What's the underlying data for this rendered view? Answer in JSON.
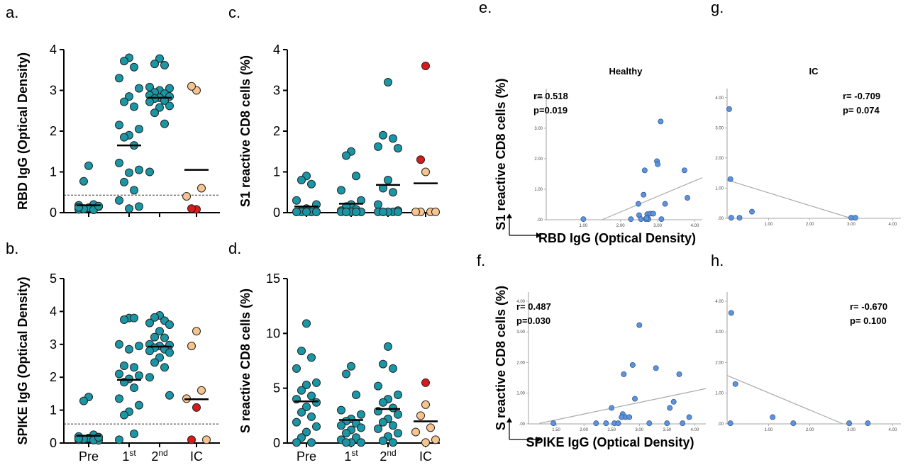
{
  "colors": {
    "teal": "#1a97a6",
    "red": "#d71a1a",
    "peach": "#f7c48d",
    "blue": "#5d93dd",
    "axis": "#000000",
    "regression": "#aaaaaa"
  },
  "chart_data": [
    {
      "panel": "a.",
      "type": "scatter",
      "ylabel": "RBD IgG (Optical Density)",
      "ylim": [
        0,
        4
      ],
      "yticks": [
        "0",
        "1",
        "2",
        "3",
        "4"
      ],
      "groups": [
        "Pre",
        "1st",
        "2nd",
        "IC"
      ],
      "threshold": 0.43,
      "means": [
        0.18,
        1.65,
        2.82,
        1.05
      ],
      "points": [
        {
          "group": 0,
          "values": [
            1.15,
            0.77,
            0.2,
            0.18,
            0.15,
            0.12,
            0.1,
            0.1,
            0.08,
            0.15,
            0.12,
            0.09,
            0.07,
            0.13,
            0.16
          ],
          "color": "teal"
        },
        {
          "group": 1,
          "values": [
            3.8,
            3.72,
            3.57,
            3.3,
            3.05,
            2.85,
            2.72,
            2.6,
            2.15,
            2.05,
            1.9,
            1.85,
            1.65,
            1.22,
            1.05,
            0.98,
            0.75,
            0.55,
            0.3,
            0.15,
            0.1
          ],
          "color": "teal"
        },
        {
          "group": 2,
          "values": [
            3.78,
            3.65,
            3.62,
            3.08,
            3.05,
            3.0,
            2.95,
            2.92,
            2.88,
            2.85,
            2.82,
            2.8,
            2.75,
            2.72,
            2.62,
            2.58,
            2.45,
            2.18,
            1.0
          ],
          "color": "teal"
        },
        {
          "group": 3,
          "values": [
            3.0,
            3.1,
            0.6,
            0.4
          ],
          "color": "peach"
        },
        {
          "group": 3,
          "values": [
            0.08,
            0.1
          ],
          "color": "red"
        }
      ]
    },
    {
      "panel": "b.",
      "type": "scatter",
      "ylabel": "SPIKE IgG (Optical  Density)",
      "ylim": [
        0,
        5
      ],
      "yticks": [
        "0",
        "1",
        "2",
        "3",
        "4",
        "5"
      ],
      "groups": [
        "Pre",
        "1st",
        "2nd",
        "IC"
      ],
      "threshold": 0.58,
      "means": [
        0.22,
        1.92,
        2.93,
        1.33
      ],
      "points": [
        {
          "group": 0,
          "values": [
            1.4,
            1.28,
            0.25,
            0.2,
            0.18,
            0.15,
            0.12,
            0.1,
            0.1,
            0.08,
            0.15,
            0.12,
            0.09,
            0.13,
            0.17
          ],
          "color": "teal"
        },
        {
          "group": 1,
          "values": [
            3.8,
            3.75,
            3.8,
            3.0,
            2.95,
            2.85,
            2.35,
            2.3,
            2.1,
            2.05,
            1.95,
            1.85,
            1.68,
            1.35,
            1.15,
            0.95,
            0.85,
            0.28,
            0.1
          ],
          "color": "teal"
        },
        {
          "group": 2,
          "values": [
            3.88,
            3.82,
            3.72,
            3.65,
            3.6,
            3.4,
            3.22,
            3.2,
            3.0,
            2.98,
            2.95,
            2.9,
            2.85,
            2.8,
            2.75,
            2.6,
            2.45,
            2.3,
            2.0,
            1.45
          ],
          "color": "teal"
        },
        {
          "group": 3,
          "values": [
            3.4,
            2.95,
            1.6,
            1.35,
            0.1
          ],
          "color": "peach"
        },
        {
          "group": 3,
          "values": [
            1.08,
            0.1
          ],
          "color": "red"
        }
      ]
    },
    {
      "panel": "c.",
      "type": "scatter",
      "ylabel": "S1 reactive CD8 cells (%)",
      "ylim": [
        0,
        4
      ],
      "yticks": [
        "0",
        "1",
        "2",
        "3",
        "4"
      ],
      "groups": [
        "Pre",
        "1st",
        "2nd",
        "IC"
      ],
      "means": [
        0.15,
        0.22,
        0.68,
        0.72
      ],
      "points": [
        {
          "group": 0,
          "values": [
            0.9,
            0.8,
            0.7,
            0.3,
            0.2,
            0.1,
            0.05,
            0.02,
            0.02,
            0.02,
            0.02,
            0.02,
            0.02,
            0.02,
            0.02,
            0.02
          ],
          "color": "teal"
        },
        {
          "group": 1,
          "values": [
            1.5,
            1.4,
            0.9,
            0.55,
            0.3,
            0.2,
            0.15,
            0.08,
            0.05,
            0.02,
            0.02,
            0.02,
            0.02,
            0.02,
            0.02,
            0.02,
            0.02,
            0.02
          ],
          "color": "teal"
        },
        {
          "group": 2,
          "values": [
            3.2,
            1.9,
            1.82,
            1.62,
            1.58,
            0.8,
            0.6,
            0.5,
            0.2,
            0.05,
            0.02,
            0.02,
            0.02,
            0.02,
            0.02,
            0.02,
            0.02
          ],
          "color": "teal"
        },
        {
          "group": 3,
          "values": [
            1.0,
            0.02,
            0.02,
            0.02,
            0.02
          ],
          "color": "peach"
        },
        {
          "group": 3,
          "values": [
            3.6,
            1.3
          ],
          "color": "red"
        }
      ]
    },
    {
      "panel": "d.",
      "type": "scatter",
      "ylabel": "S reactive CD8 cells (%)",
      "ylim": [
        0,
        15
      ],
      "yticks": [
        "0",
        "5",
        "10",
        "15"
      ],
      "groups": [
        "Pre",
        "1st",
        "2nd",
        "IC"
      ],
      "means": [
        3.8,
        2.1,
        3.1,
        1.98
      ],
      "points": [
        {
          "group": 0,
          "values": [
            10.9,
            8.4,
            7.8,
            6.8,
            5.5,
            5.3,
            4.8,
            4.3,
            4.0,
            3.7,
            3.3,
            2.8,
            2.4,
            1.9,
            1.5,
            1.0,
            0.5,
            0.05,
            0.05
          ],
          "color": "teal"
        },
        {
          "group": 1,
          "values": [
            7.0,
            6.3,
            4.4,
            3.0,
            2.6,
            2.2,
            2.0,
            1.8,
            1.6,
            1.4,
            1.2,
            0.9,
            0.5,
            0.3,
            0.05,
            0.05,
            0.05
          ],
          "color": "teal"
        },
        {
          "group": 2,
          "values": [
            8.8,
            7.2,
            6.8,
            5.2,
            4.4,
            4.0,
            3.7,
            3.2,
            2.9,
            2.6,
            2.2,
            1.9,
            1.6,
            1.3,
            0.9,
            0.6,
            0.2,
            0.05
          ],
          "color": "teal"
        },
        {
          "group": 3,
          "values": [
            3.5,
            2.5,
            1.4,
            1.0,
            0.3,
            0.05
          ],
          "color": "peach"
        },
        {
          "group": 3,
          "values": [
            5.5
          ],
          "color": "red"
        }
      ]
    },
    {
      "panel": "e.",
      "type": "scatter",
      "title": "Healthy",
      "xlabel": "RBD IgG (Optical Density)",
      "ylabel": "S1 reactive CD8 cells (%)",
      "xlim": [
        0,
        4.2
      ],
      "ylim": [
        0,
        4.3
      ],
      "xticks": [
        "1.00",
        "2.00",
        "3.00",
        "4.00"
      ],
      "yticks": [
        "4.00",
        "3.00",
        "2.00",
        "1.00",
        ".00"
      ],
      "r": "r= 0.518",
      "p": "p=0.019",
      "fit": [
        [
          1.5,
          0.0
        ],
        [
          4.2,
          1.38
        ]
      ],
      "x": [
        1.0,
        2.28,
        2.48,
        2.5,
        2.55,
        2.62,
        2.65,
        2.68,
        2.72,
        2.75,
        2.8,
        2.88,
        2.98,
        3.0,
        3.08,
        3.2,
        3.72,
        3.8,
        2.7,
        3.1
      ],
      "y": [
        0.02,
        0.02,
        0.52,
        0.15,
        0.02,
        0.82,
        1.62,
        0.02,
        0.18,
        0.02,
        0.2,
        0.2,
        1.92,
        1.82,
        3.22,
        0.52,
        1.62,
        0.72,
        0.05,
        0.02
      ]
    },
    {
      "panel": "g.",
      "type": "scatter",
      "title": "IC",
      "xlim": [
        0,
        4.2
      ],
      "ylim": [
        0,
        4.3
      ],
      "xticks": [
        "1.00",
        "2.00",
        "3.00",
        "4.00"
      ],
      "yticks": [
        "4.00",
        "3.00",
        "2.00",
        "1.00",
        ".00"
      ],
      "r": "r= -0.709",
      "p": "p=  0.074",
      "fit": [
        [
          0.0,
          1.27
        ],
        [
          3.0,
          0.0
        ]
      ],
      "x": [
        0.05,
        0.08,
        0.1,
        0.3,
        0.6,
        3.0,
        3.1
      ],
      "y": [
        3.62,
        1.3,
        0.02,
        0.02,
        0.22,
        0.02,
        0.02
      ]
    },
    {
      "panel": "f.",
      "type": "scatter",
      "xlabel": "SPIKE IgG (Optical Density)",
      "ylabel": "S reactive CD8 cells (%)",
      "xlim": [
        1.0,
        4.2
      ],
      "ylim": [
        0,
        4.3
      ],
      "xticks": [
        "1.50",
        "2.00",
        "2.50",
        "3.00",
        "3.50",
        "4.00"
      ],
      "yticks": [
        "4.00",
        "3.00",
        "2.00",
        "1.00",
        ".00"
      ],
      "r": "r= 0.487",
      "p": "p=0.030",
      "fit": [
        [
          1.2,
          0.02
        ],
        [
          4.2,
          1.15
        ]
      ],
      "x": [
        1.45,
        2.22,
        2.4,
        2.5,
        2.55,
        2.62,
        2.7,
        2.72,
        2.75,
        2.82,
        2.88,
        2.92,
        3.0,
        3.18,
        3.3,
        3.5,
        3.55,
        3.62,
        3.72,
        3.78,
        3.9,
        2.68
      ],
      "y": [
        0.02,
        0.02,
        0.02,
        0.52,
        0.02,
        0.02,
        0.32,
        1.62,
        0.22,
        0.22,
        1.92,
        0.82,
        3.22,
        0.02,
        1.82,
        0.02,
        0.52,
        0.72,
        1.62,
        0.02,
        0.22,
        0.22
      ]
    },
    {
      "panel": "h.",
      "type": "scatter",
      "xlim": [
        0,
        4.2
      ],
      "ylim": [
        0,
        4.3
      ],
      "xticks": [
        "1.00",
        "2.00",
        "3.00",
        "4.00"
      ],
      "yticks": [
        "4.00",
        "3.00",
        "2.00",
        "1.00",
        ".00"
      ],
      "r": "r= -0.670",
      "p": "p=  0.100",
      "fit": [
        [
          0.0,
          1.58
        ],
        [
          2.8,
          0.0
        ]
      ],
      "x": [
        0.1,
        0.08,
        0.2,
        1.1,
        1.6,
        2.95,
        3.4
      ],
      "y": [
        3.62,
        0.02,
        1.3,
        0.22,
        0.02,
        0.02,
        0.02
      ]
    }
  ]
}
